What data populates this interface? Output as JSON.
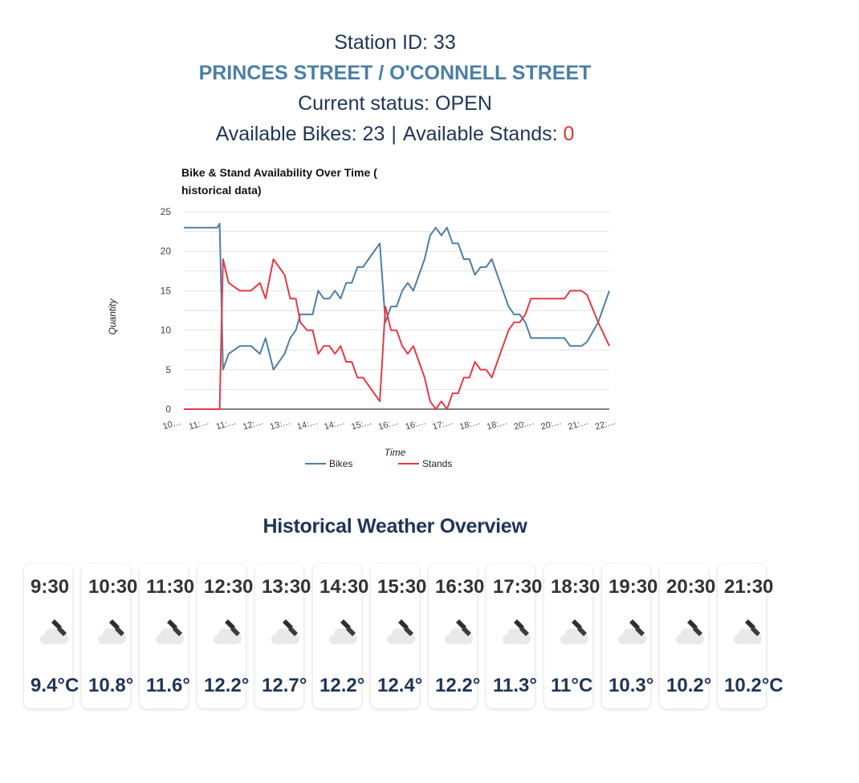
{
  "station": {
    "id_label": "Station ID: 33",
    "name": "PRINCES STREET / O'CONNELL STREET",
    "status": "Current status: OPEN",
    "bikes_label": "Available Bikes: 23",
    "separator": "|",
    "stands_label": "Available Stands: ",
    "stands_value": "0"
  },
  "chart_data": {
    "type": "line",
    "title_lines": [
      "Bike & Stand Availability Over Time (",
      "historical data)"
    ],
    "xlabel": "Time",
    "ylabel": "Quantity",
    "ylim": [
      0,
      25
    ],
    "yticks": [
      "0",
      "5",
      "10",
      "15",
      "20",
      "25"
    ],
    "grid": true,
    "legend_position": "bottom",
    "x_tick_labels": [
      "10…",
      "11:…",
      "11:…",
      "12:…",
      "13:…",
      "14:…",
      "14:…",
      "15:…",
      "16:…",
      "16:…",
      "17:…",
      "18:…",
      "18:…",
      "20:…",
      "20:…",
      "21:…",
      "22:…"
    ],
    "series": [
      {
        "name": "Bikes",
        "color": "#4e7ea6",
        "points": [
          [
            0,
            23
          ],
          [
            0.5,
            23
          ],
          [
            1,
            23
          ],
          [
            1.5,
            23
          ],
          [
            2,
            23
          ],
          [
            2.5,
            23
          ],
          [
            3,
            23
          ],
          [
            3.2,
            23.5
          ],
          [
            3.5,
            5
          ],
          [
            4,
            7
          ],
          [
            5,
            8
          ],
          [
            6,
            8
          ],
          [
            6.8,
            7
          ],
          [
            7.3,
            9
          ],
          [
            8,
            5
          ],
          [
            9,
            7
          ],
          [
            9.5,
            9
          ],
          [
            10,
            10
          ],
          [
            10.4,
            12
          ],
          [
            11,
            12
          ],
          [
            11.5,
            12
          ],
          [
            12,
            15
          ],
          [
            12.5,
            14
          ],
          [
            13,
            14
          ],
          [
            13.5,
            15
          ],
          [
            14,
            14
          ],
          [
            14.5,
            16
          ],
          [
            15,
            16
          ],
          [
            15.5,
            18
          ],
          [
            16,
            18
          ],
          [
            16.5,
            19
          ],
          [
            17,
            20
          ],
          [
            17.5,
            21
          ],
          [
            18,
            11
          ],
          [
            18.5,
            13
          ],
          [
            19,
            13
          ],
          [
            19.5,
            15
          ],
          [
            20,
            16
          ],
          [
            20.5,
            15
          ],
          [
            21,
            17
          ],
          [
            21.5,
            19
          ],
          [
            22,
            22
          ],
          [
            22.5,
            23
          ],
          [
            23,
            22
          ],
          [
            23.5,
            23
          ],
          [
            24,
            21
          ],
          [
            24.5,
            21
          ],
          [
            25,
            19
          ],
          [
            25.5,
            19
          ],
          [
            26,
            17
          ],
          [
            26.5,
            18
          ],
          [
            27,
            18
          ],
          [
            27.5,
            19
          ],
          [
            28,
            17
          ],
          [
            28.5,
            15
          ],
          [
            29,
            13
          ],
          [
            29.5,
            12
          ],
          [
            30,
            12
          ],
          [
            30.5,
            11
          ],
          [
            31,
            9
          ],
          [
            32,
            9
          ],
          [
            33,
            9
          ],
          [
            34,
            9
          ],
          [
            34.5,
            8
          ],
          [
            35,
            8
          ],
          [
            35.5,
            8
          ],
          [
            36,
            8.5
          ],
          [
            37,
            11
          ],
          [
            38,
            15
          ]
        ]
      },
      {
        "name": "Stands",
        "color": "#e63946",
        "points": [
          [
            0,
            0
          ],
          [
            0.5,
            0
          ],
          [
            1,
            0
          ],
          [
            1.5,
            0
          ],
          [
            2,
            0
          ],
          [
            2.5,
            0
          ],
          [
            3,
            0
          ],
          [
            3.2,
            0
          ],
          [
            3.5,
            19
          ],
          [
            4,
            16
          ],
          [
            5,
            15
          ],
          [
            6,
            15
          ],
          [
            6.8,
            16
          ],
          [
            7.3,
            14
          ],
          [
            8,
            19
          ],
          [
            9,
            17
          ],
          [
            9.5,
            14
          ],
          [
            10,
            14
          ],
          [
            10.4,
            11
          ],
          [
            11,
            10
          ],
          [
            11.5,
            10
          ],
          [
            12,
            7
          ],
          [
            12.5,
            8
          ],
          [
            13,
            8
          ],
          [
            13.5,
            7
          ],
          [
            14,
            8
          ],
          [
            14.5,
            6
          ],
          [
            15,
            6
          ],
          [
            15.5,
            4
          ],
          [
            16,
            4
          ],
          [
            16.5,
            3
          ],
          [
            17,
            2
          ],
          [
            17.5,
            1
          ],
          [
            18,
            13
          ],
          [
            18.5,
            10
          ],
          [
            19,
            10
          ],
          [
            19.5,
            8
          ],
          [
            20,
            7
          ],
          [
            20.5,
            8
          ],
          [
            21,
            6
          ],
          [
            21.5,
            4
          ],
          [
            22,
            1
          ],
          [
            22.5,
            0
          ],
          [
            23,
            1
          ],
          [
            23.5,
            0
          ],
          [
            24,
            2
          ],
          [
            24.5,
            2
          ],
          [
            25,
            4
          ],
          [
            25.5,
            4
          ],
          [
            26,
            6
          ],
          [
            26.5,
            5
          ],
          [
            27,
            5
          ],
          [
            27.5,
            4
          ],
          [
            28,
            6
          ],
          [
            28.5,
            8
          ],
          [
            29,
            10
          ],
          [
            29.5,
            11
          ],
          [
            30,
            11
          ],
          [
            30.5,
            12
          ],
          [
            31,
            14
          ],
          [
            32,
            14
          ],
          [
            33,
            14
          ],
          [
            34,
            14
          ],
          [
            34.5,
            15
          ],
          [
            35,
            15
          ],
          [
            35.5,
            15
          ],
          [
            36,
            14.5
          ],
          [
            37,
            11
          ],
          [
            38,
            8
          ]
        ]
      }
    ]
  },
  "weather": {
    "title": "Historical Weather Overview",
    "icon": "cloud-rain-icon",
    "items": [
      {
        "time": "9:30",
        "temp": "9.4°C"
      },
      {
        "time": "10:30",
        "temp": "10.8°"
      },
      {
        "time": "11:30",
        "temp": "11.6°"
      },
      {
        "time": "12:30",
        "temp": "12.2°"
      },
      {
        "time": "13:30",
        "temp": "12.7°"
      },
      {
        "time": "14:30",
        "temp": "12.2°"
      },
      {
        "time": "15:30",
        "temp": "12.4°"
      },
      {
        "time": "16:30",
        "temp": "12.2°"
      },
      {
        "time": "17:30",
        "temp": "11.3°"
      },
      {
        "time": "18:30",
        "temp": "11°C"
      },
      {
        "time": "19:30",
        "temp": "10.3°"
      },
      {
        "time": "20:30",
        "temp": "10.2°"
      },
      {
        "time": "21:30",
        "temp": "10.2°C"
      }
    ]
  }
}
